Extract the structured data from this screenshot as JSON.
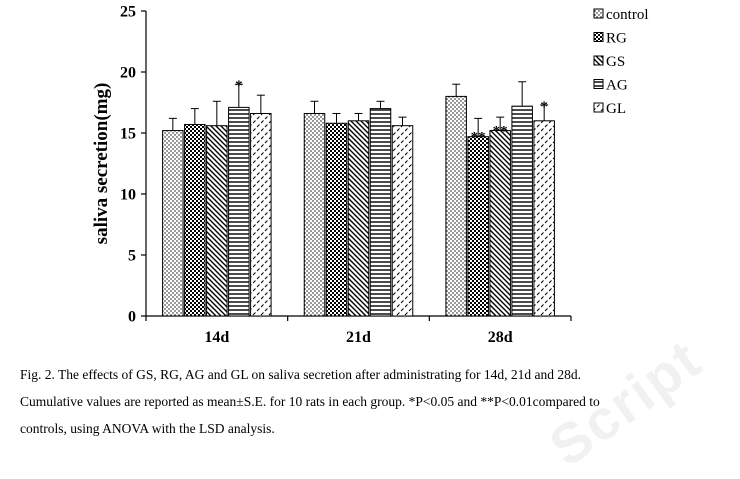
{
  "chart_data": {
    "type": "bar",
    "ylabel": "saliva secretion(mg)",
    "xlabel": "",
    "ylim": [
      0,
      25
    ],
    "yticks": [
      0,
      5,
      10,
      15,
      20,
      25
    ],
    "categories": [
      "14d",
      "21d",
      "28d"
    ],
    "legend_position": "right",
    "series": [
      {
        "name": "control",
        "pattern": "dots",
        "values": [
          15.2,
          16.6,
          18.0
        ],
        "errors": [
          1.0,
          1.0,
          1.0
        ],
        "marks": [
          "",
          "",
          ""
        ]
      },
      {
        "name": "RG",
        "pattern": "checker",
        "values": [
          15.7,
          15.8,
          14.7
        ],
        "errors": [
          1.3,
          0.8,
          1.5
        ],
        "marks": [
          "",
          "",
          "**"
        ]
      },
      {
        "name": "GS",
        "pattern": "diag-down",
        "values": [
          15.6,
          16.0,
          15.2
        ],
        "errors": [
          2.0,
          0.6,
          1.1
        ],
        "marks": [
          "",
          "",
          "**"
        ]
      },
      {
        "name": "AG",
        "pattern": "horiz",
        "values": [
          17.1,
          17.0,
          17.2
        ],
        "errors": [
          1.9,
          0.6,
          2.0
        ],
        "marks": [
          "*",
          "",
          ""
        ]
      },
      {
        "name": "GL",
        "pattern": "diag-dash",
        "values": [
          16.6,
          15.6,
          16.0
        ],
        "errors": [
          1.5,
          0.7,
          1.3
        ],
        "marks": [
          "",
          "",
          "*"
        ]
      }
    ]
  },
  "caption": {
    "line1": "Fig. 2. The effects of GS, RG, AG and GL on saliva secretion after administrating for 14d, 21d and 28d.",
    "line2": "Cumulative values are reported as mean±S.E. for 10 rats in each group. *P<0.05 and **P<0.01compared to",
    "line3": "controls, using ANOVA with the LSD analysis."
  },
  "watermark": "Script"
}
